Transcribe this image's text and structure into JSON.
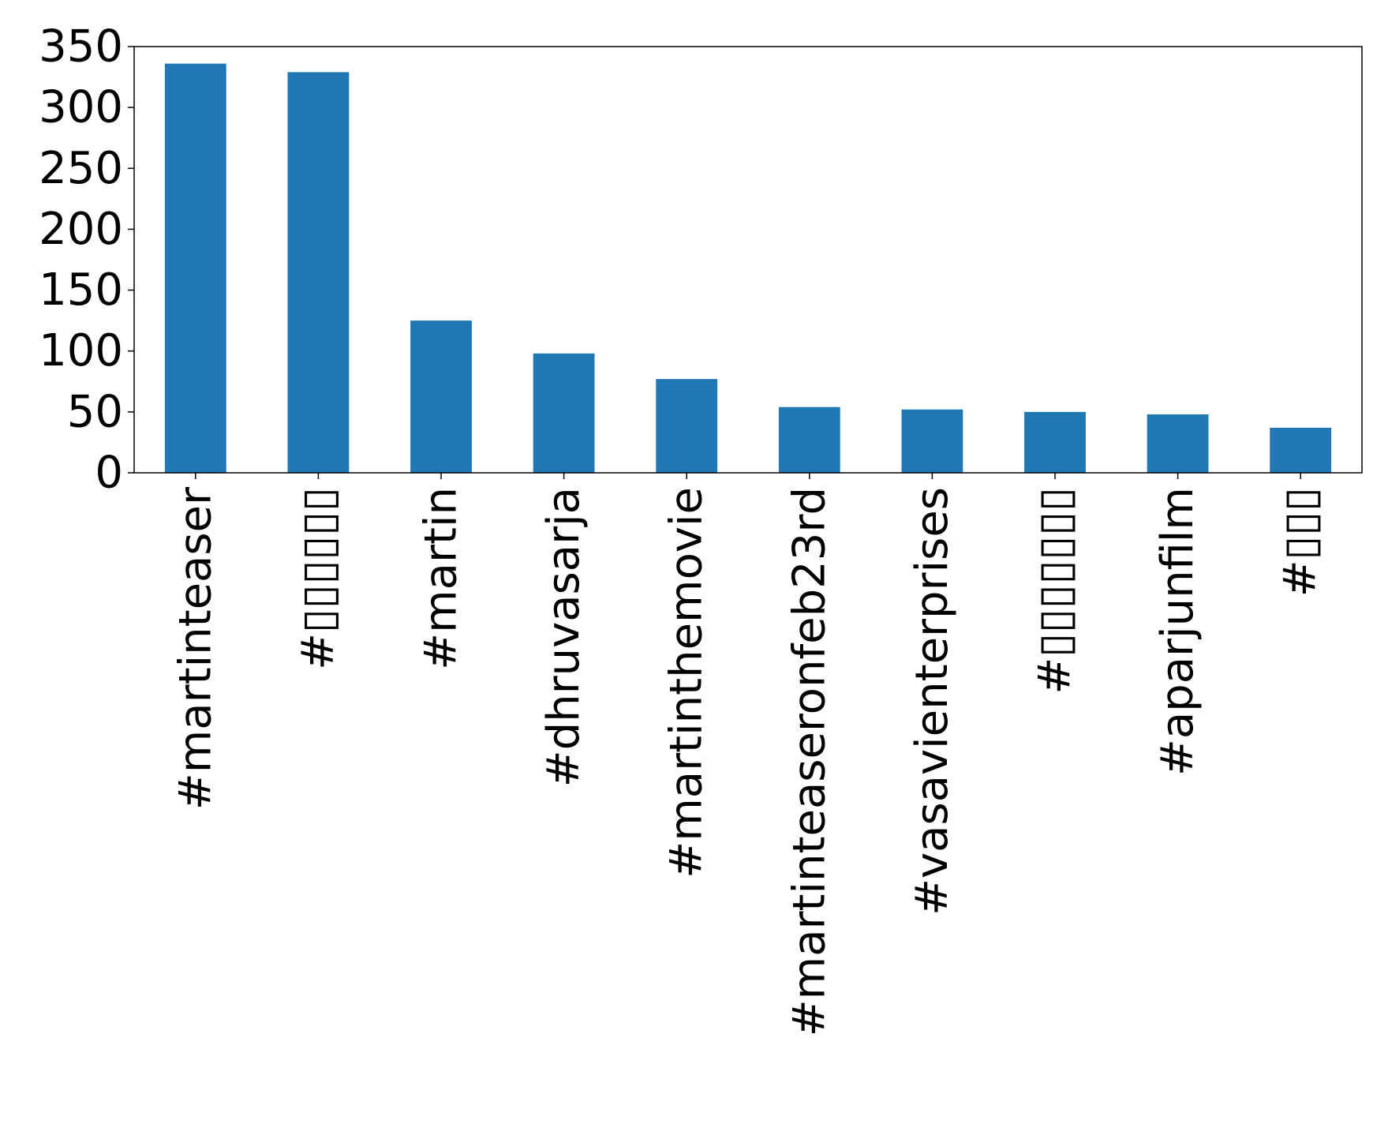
{
  "chart_data": {
    "type": "bar",
    "title": "",
    "xlabel": "",
    "ylabel": "",
    "categories": [
      "#martinteaser",
      "#▯▯▯▯▯▯",
      "#martin",
      "#dhruvasarja",
      "#martinthemovie",
      "#martinteaseronfeb23rd",
      "#vasavienterprises",
      "#▯▯▯▯▯▯▯",
      "#aparjunfilm",
      "#▯▯▯"
    ],
    "values": [
      336,
      329,
      125,
      98,
      77,
      54,
      52,
      50,
      48,
      37
    ],
    "ylim": [
      0,
      350
    ],
    "yticks": [
      0,
      50,
      100,
      150,
      200,
      250,
      300,
      350
    ],
    "bar_color": "#1f77b4",
    "grid": false,
    "legend": "none"
  }
}
